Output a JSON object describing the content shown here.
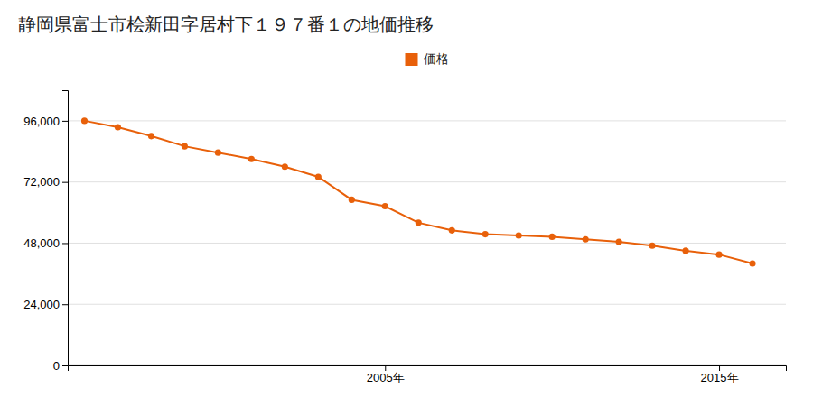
{
  "chart_data": {
    "type": "line",
    "title": "静岡県富士市桧新田字居村下１９７番１の地価推移",
    "x": [
      1996,
      1997,
      1998,
      1999,
      2000,
      2001,
      2002,
      2003,
      2004,
      2005,
      2006,
      2007,
      2008,
      2009,
      2010,
      2011,
      2012,
      2013,
      2014,
      2015,
      2016
    ],
    "xlim": [
      1995.5,
      2017
    ],
    "xticks": [
      {
        "value": 2005,
        "label": "2005年"
      },
      {
        "value": 2015,
        "label": "2015年"
      }
    ],
    "ylim": [
      0,
      108000
    ],
    "yticks": [
      0,
      {
        "value": 24000,
        "label": "24,000"
      },
      {
        "value": 48000,
        "label": "48,000"
      },
      {
        "value": 72000,
        "label": "72,000"
      },
      {
        "value": 96000,
        "label": "96,000"
      }
    ],
    "series": [
      {
        "name": "価格",
        "color": "#e8600a",
        "marker": "circle",
        "values": [
          96000,
          93500,
          90000,
          86000,
          83500,
          81000,
          78000,
          74000,
          65000,
          62500,
          56000,
          53000,
          51500,
          51000,
          50500,
          49500,
          48500,
          47000,
          45000,
          43500,
          40000
        ]
      }
    ],
    "grid": true,
    "legend": "top"
  }
}
